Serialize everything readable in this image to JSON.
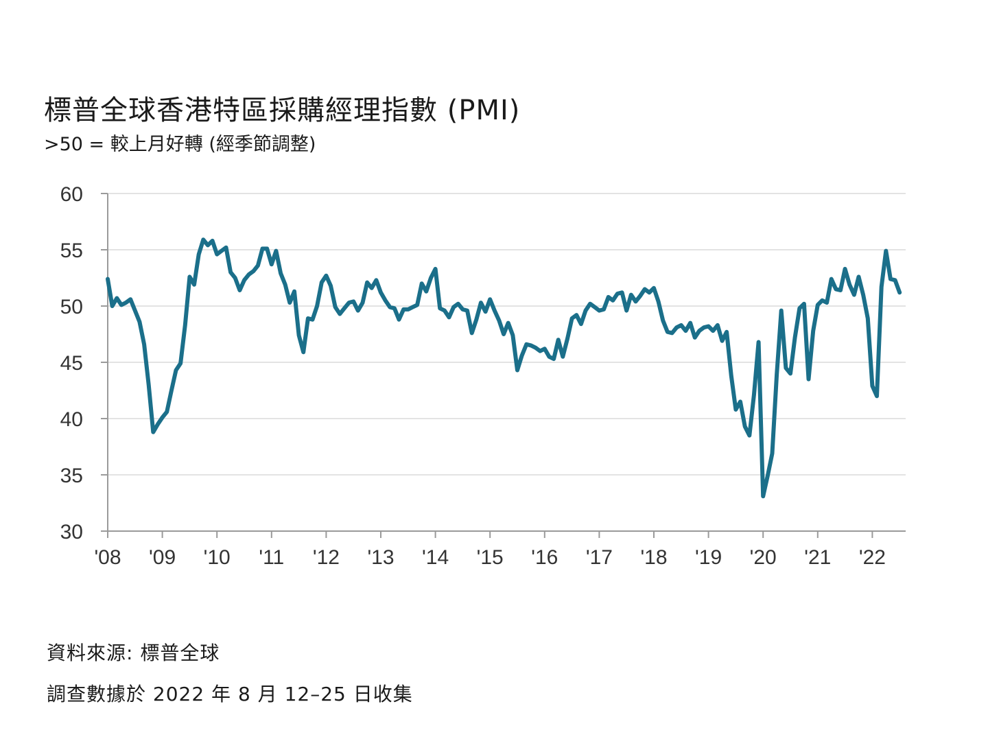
{
  "title": "標普全球香港特區採購經理指數 (PMI)",
  "subtitle": ">50 = 較上月好轉 (經季節調整)",
  "source": "資料來源: 標普全球",
  "note": "調查數據於 2022 年 8 月 12–25 日收集",
  "colors": {
    "line": "#1b6f8a",
    "grid": "#e3e3e3",
    "axis": "#9a9a9a"
  },
  "chart_data": {
    "type": "line",
    "title": "標普全球香港特區採購經理指數 (PMI)",
    "subtitle": ">50 = 較上月好轉 (經季節調整)",
    "xlabel": "",
    "ylabel": "",
    "ylim": [
      30,
      60
    ],
    "yticks": [
      30,
      35,
      40,
      45,
      50,
      55,
      60
    ],
    "xticks": [
      "'08",
      "'09",
      "'10",
      "'11",
      "'12",
      "'13",
      "'14",
      "'15",
      "'16",
      "'17",
      "'18",
      "'19",
      "'20",
      "'21",
      "'22"
    ],
    "grid": true,
    "series": [
      {
        "values": [
          52.4,
          50.0,
          50.7,
          50.1,
          50.3,
          50.6,
          49.6,
          48.6,
          46.6,
          43.0,
          38.8,
          39.5,
          40.1,
          40.6,
          42.5,
          44.3,
          44.9,
          48.3,
          52.6,
          51.9,
          54.6,
          55.9,
          55.4,
          55.8,
          54.6,
          54.9,
          55.2,
          53.0,
          52.5,
          51.4,
          52.3,
          52.8,
          53.1,
          53.6,
          55.1,
          55.1,
          53.7,
          54.9,
          52.9,
          51.9,
          50.3,
          51.3,
          47.4,
          45.9,
          48.9,
          48.8,
          50.0,
          52.1,
          52.7,
          51.8,
          49.9,
          49.3,
          49.8,
          50.3,
          50.4,
          49.6,
          50.3,
          52.1,
          51.6,
          52.3,
          51.2,
          50.5,
          49.9,
          49.8,
          48.8,
          49.7,
          49.7,
          49.9,
          50.1,
          52.0,
          51.3,
          52.5,
          53.3,
          49.8,
          49.6,
          49.0,
          49.9,
          50.2,
          49.7,
          49.6,
          47.6,
          48.8,
          50.3,
          49.5,
          50.6,
          49.6,
          48.7,
          47.5,
          48.5,
          47.4,
          44.3,
          45.6,
          46.6,
          46.5,
          46.3,
          46.0,
          46.2,
          45.5,
          45.3,
          47.0,
          45.5,
          47.1,
          48.9,
          49.2,
          48.4,
          49.6,
          50.2,
          49.9,
          49.6,
          49.7,
          50.8,
          50.5,
          51.1,
          51.2,
          49.6,
          51.0,
          50.4,
          50.9,
          51.5,
          51.2,
          51.6,
          50.4,
          48.7,
          47.7,
          47.6,
          48.1,
          48.3,
          47.8,
          48.5,
          47.2,
          47.8,
          48.1,
          48.2,
          47.8,
          48.3,
          46.9,
          47.7,
          43.8,
          40.8,
          41.5,
          39.3,
          38.5,
          42.1,
          46.8,
          33.1,
          34.9,
          36.9,
          43.9,
          49.6,
          44.5,
          44.0,
          47.2,
          49.8,
          50.2,
          43.5,
          47.8,
          50.1,
          50.5,
          50.3,
          52.4,
          51.5,
          51.4,
          53.3,
          51.9,
          51.0,
          52.6,
          51.0,
          48.9,
          42.9,
          42.0,
          51.7,
          54.9,
          52.4,
          52.3,
          51.2
        ]
      }
    ]
  }
}
